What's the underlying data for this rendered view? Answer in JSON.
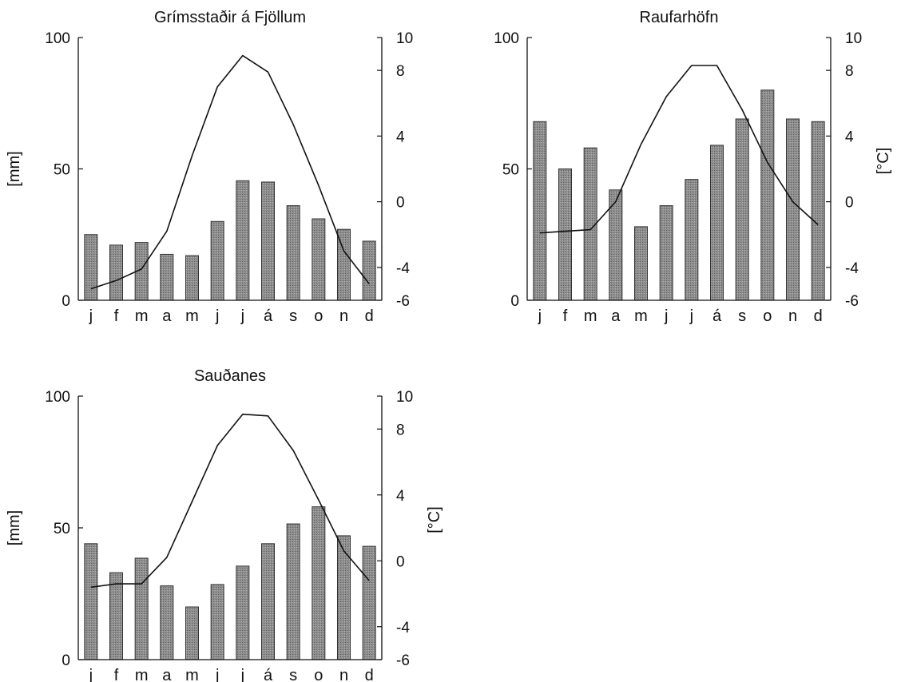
{
  "chart_data": [
    {
      "type": "bar",
      "title": "Grímsstaðir á Fjöllum",
      "categories": [
        "j",
        "f",
        "m",
        "a",
        "m",
        "j",
        "j",
        "á",
        "s",
        "o",
        "n",
        "d"
      ],
      "ylabel": "[mm]",
      "y2label": "",
      "ylim": [
        0,
        100
      ],
      "y2lim": [
        -6,
        10
      ],
      "yticks": [
        "0",
        "50",
        "100"
      ],
      "y2ticks": [
        "-6",
        "-4",
        "0",
        "4",
        "8",
        "10"
      ],
      "series": [
        {
          "type": "bar",
          "axis": "left",
          "values": [
            25,
            21,
            22,
            17.5,
            17,
            30,
            45.5,
            45,
            36,
            31,
            27,
            22.5
          ]
        },
        {
          "type": "line",
          "axis": "right",
          "values": [
            -5.3,
            -4.8,
            -4.1,
            -1.8,
            2.8,
            7,
            8.9,
            7.9,
            4.7,
            1,
            -3,
            -5
          ]
        }
      ]
    },
    {
      "type": "bar",
      "title": "Raufarhöfn",
      "categories": [
        "j",
        "f",
        "m",
        "a",
        "m",
        "j",
        "j",
        "á",
        "s",
        "o",
        "n",
        "d"
      ],
      "ylabel": "",
      "y2label": "[°C]",
      "ylim": [
        0,
        100
      ],
      "y2lim": [
        -6,
        10
      ],
      "yticks": [
        "0",
        "50",
        "100"
      ],
      "y2ticks": [
        "-6",
        "-4",
        "0",
        "4",
        "8",
        "10"
      ],
      "series": [
        {
          "type": "bar",
          "axis": "left",
          "values": [
            68,
            50,
            58,
            42,
            28,
            36,
            46,
            59,
            69,
            80,
            69,
            68
          ]
        },
        {
          "type": "line",
          "axis": "right",
          "values": [
            -1.9,
            -1.8,
            -1.7,
            0,
            3.5,
            6.4,
            8.3,
            8.3,
            5.6,
            2.4,
            0,
            -1.4
          ]
        }
      ]
    },
    {
      "type": "bar",
      "title": "Sauðanes",
      "categories": [
        "j",
        "f",
        "m",
        "a",
        "m",
        "j",
        "j",
        "á",
        "s",
        "o",
        "n",
        "d"
      ],
      "ylabel": "[mm]",
      "y2label": "[°C]",
      "ylim": [
        0,
        100
      ],
      "y2lim": [
        -6,
        10
      ],
      "yticks": [
        "0",
        "50",
        "100"
      ],
      "y2ticks": [
        "-6",
        "-4",
        "0",
        "4",
        "8",
        "10"
      ],
      "series": [
        {
          "type": "bar",
          "axis": "left",
          "values": [
            44,
            33,
            38.5,
            28,
            20,
            28.5,
            35.5,
            44,
            51.5,
            58,
            47,
            43
          ]
        },
        {
          "type": "line",
          "axis": "right",
          "values": [
            -1.6,
            -1.4,
            -1.4,
            0.2,
            3.6,
            7,
            8.9,
            8.8,
            6.7,
            3.7,
            0.6,
            -1.2
          ]
        }
      ]
    }
  ]
}
